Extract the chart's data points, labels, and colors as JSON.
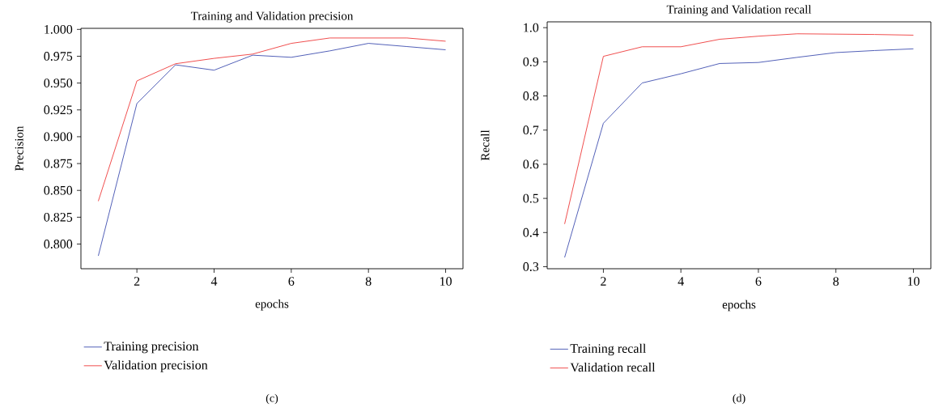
{
  "chart_data": [
    {
      "type": "line",
      "title": "Training and Validation precision",
      "xlabel": "epochs",
      "ylabel": "Precision",
      "x": [
        1,
        2,
        3,
        4,
        5,
        6,
        7,
        8,
        9,
        10
      ],
      "series": [
        {
          "name": "Training precision",
          "color": "#3f4fb0",
          "values": [
            0.789,
            0.931,
            0.967,
            0.962,
            0.976,
            0.974,
            0.98,
            0.987,
            0.984,
            0.981
          ]
        },
        {
          "name": "Validation precision",
          "color": "#ee3b3b",
          "values": [
            0.84,
            0.952,
            0.968,
            0.973,
            0.977,
            0.987,
            0.992,
            0.992,
            0.992,
            0.989
          ]
        }
      ],
      "xlim": [
        0.55,
        10.45
      ],
      "ylim": [
        0.777,
        1.001
      ],
      "xticks": [
        2,
        4,
        6,
        8,
        10
      ],
      "yticks": [
        {
          "value": 0.8,
          "label": "0.800"
        },
        {
          "value": 0.825,
          "label": "0.825"
        },
        {
          "value": 0.85,
          "label": "0.850"
        },
        {
          "value": 0.875,
          "label": "0.875"
        },
        {
          "value": 0.9,
          "label": "0.900"
        },
        {
          "value": 0.925,
          "label": "0.925"
        },
        {
          "value": 0.95,
          "label": "0.950"
        },
        {
          "value": 0.975,
          "label": "0.975"
        },
        {
          "value": 1.0,
          "label": "1.000"
        }
      ],
      "grid": false,
      "legend": "bottom",
      "annotations": [
        "(c)"
      ]
    },
    {
      "type": "line",
      "title": "Training and Validation recall",
      "xlabel": "epochs",
      "ylabel": "Recall",
      "x": [
        1,
        2,
        3,
        4,
        5,
        6,
        7,
        8,
        9,
        10
      ],
      "series": [
        {
          "name": "Training recall",
          "color": "#3f4fb0",
          "values": [
            0.327,
            0.72,
            0.838,
            0.865,
            0.895,
            0.898,
            0.913,
            0.927,
            0.933,
            0.938
          ]
        },
        {
          "name": "Validation recall",
          "color": "#ee3b3b",
          "values": [
            0.425,
            0.916,
            0.944,
            0.944,
            0.966,
            0.975,
            0.982,
            0.981,
            0.98,
            0.978
          ]
        }
      ],
      "xlim": [
        0.55,
        10.45
      ],
      "ylim": [
        0.294,
        1.017
      ],
      "xticks": [
        2,
        4,
        6,
        8,
        10
      ],
      "yticks": [
        {
          "value": 0.3,
          "label": "0.3"
        },
        {
          "value": 0.4,
          "label": "0.4"
        },
        {
          "value": 0.5,
          "label": "0.5"
        },
        {
          "value": 0.6,
          "label": "0.6"
        },
        {
          "value": 0.7,
          "label": "0.7"
        },
        {
          "value": 0.8,
          "label": "0.8"
        },
        {
          "value": 0.9,
          "label": "0.9"
        },
        {
          "value": 1.0,
          "label": "1.0"
        }
      ],
      "grid": false,
      "legend": "bottom",
      "annotations": [
        "(d)"
      ]
    }
  ]
}
